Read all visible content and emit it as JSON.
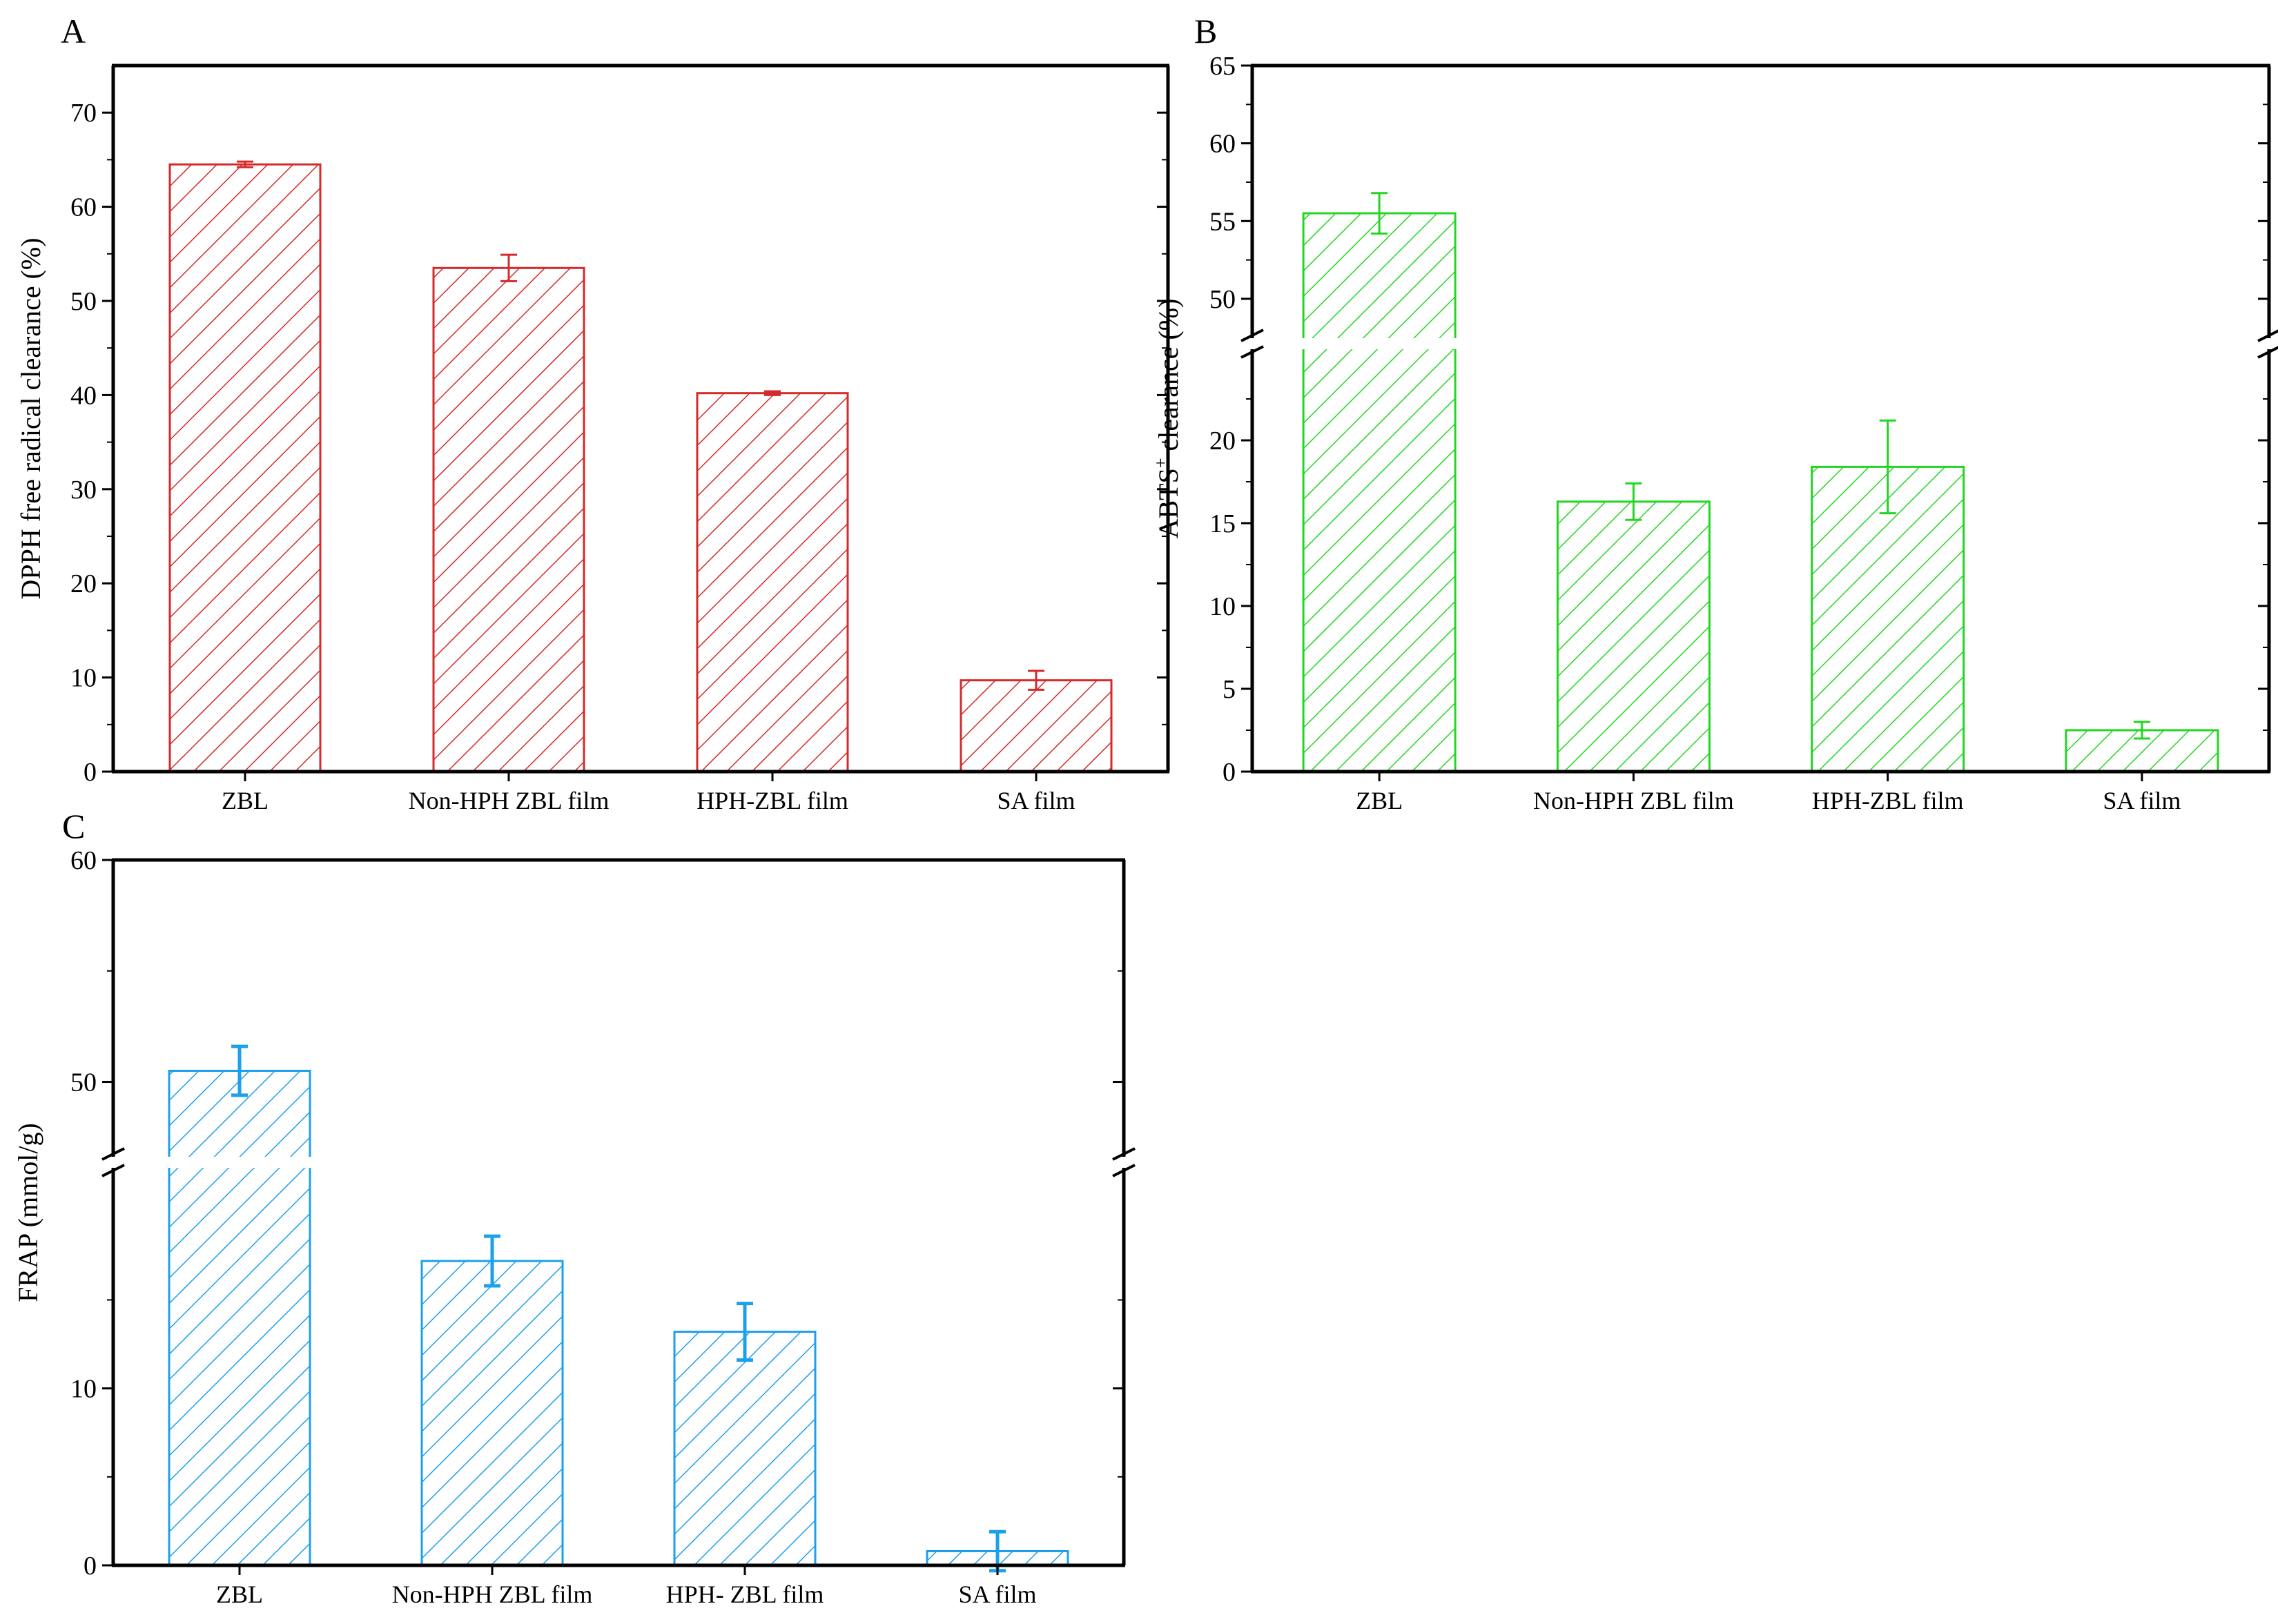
{
  "colors": {
    "red": "#d42a2a",
    "green": "#22d622",
    "blue": "#1ca0ec",
    "axis": "#000000"
  },
  "chart_data": [
    {
      "panel": "A",
      "type": "bar",
      "ylabel": "DPPH free radical clearance (%)",
      "categories": [
        "ZBL",
        "Non-HPH ZBL film",
        "HPH-ZBL film",
        "SA film"
      ],
      "values": [
        64.5,
        53.5,
        40.2,
        9.7
      ],
      "errors": [
        0.3,
        1.4,
        0.2,
        1.0
      ],
      "ylim": [
        0,
        75
      ],
      "yticks": [
        0,
        10,
        20,
        30,
        40,
        50,
        60,
        70
      ],
      "color": "red"
    },
    {
      "panel": "B",
      "type": "bar",
      "ylabel_main": "ABTS",
      "ylabel_sup": "+",
      "ylabel_rest": " clearance (%)",
      "categories": [
        "ZBL",
        "Non-HPH ZBL film",
        "HPH-ZBL film",
        "SA film"
      ],
      "values": [
        55.5,
        16.3,
        18.4,
        2.5
      ],
      "errors": [
        1.3,
        1.1,
        2.8,
        0.5
      ],
      "axis_break": {
        "lower": [
          0,
          25
        ],
        "upper": [
          48,
          65
        ]
      },
      "yticks_lower": [
        0,
        5,
        10,
        15,
        20
      ],
      "yticks_upper": [
        50,
        55,
        60,
        65
      ],
      "color": "green"
    },
    {
      "panel": "C",
      "type": "bar",
      "ylabel": "FRAP (mmol/g)",
      "categories": [
        "ZBL",
        "Non-HPH ZBL film",
        "HPH- ZBL film",
        "SA film"
      ],
      "values": [
        50.5,
        17.2,
        13.2,
        0.8
      ],
      "errors": [
        1.1,
        1.4,
        1.6,
        1.1
      ],
      "axis_break": {
        "lower": [
          0,
          22
        ],
        "upper": [
          47,
          60
        ]
      },
      "yticks_lower": [
        0,
        10
      ],
      "yticks_upper": [
        50,
        60
      ],
      "color": "blue"
    }
  ]
}
